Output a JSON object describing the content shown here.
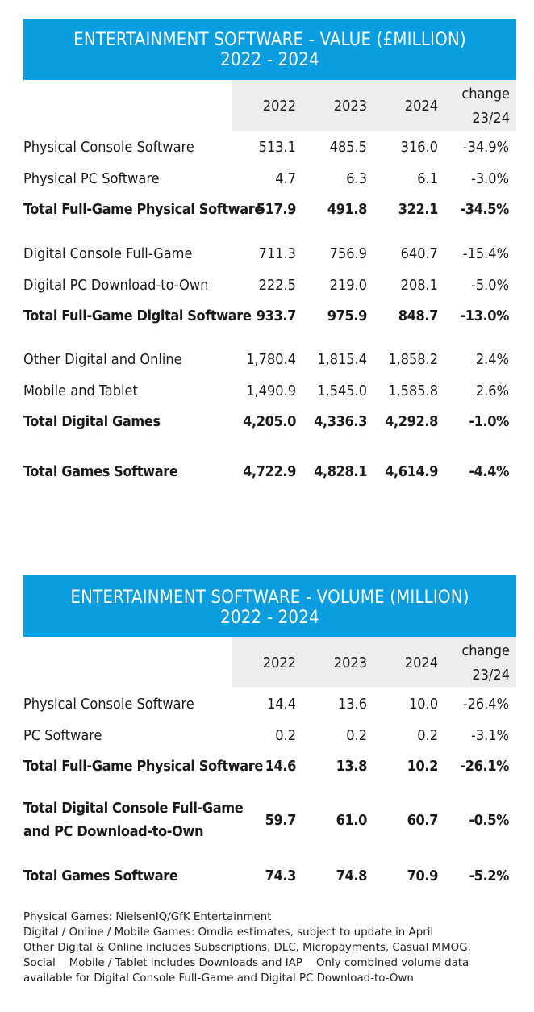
{
  "value_table": {
    "title": "ENTERTAINMENT SOFTWARE - VALUE (£MILLION)",
    "subtitle": "2022 - 2024",
    "headers": [
      "2022",
      "2023",
      "2024",
      "change",
      "23/24"
    ],
    "rows": [
      {
        "label": "Physical Console Software",
        "v2022": "513.1",
        "v2023": "485.5",
        "v2024": "316.0",
        "change": "-34.9%"
      },
      {
        "label": "Physical PC Software",
        "v2022": "4.7",
        "v2023": "6.3",
        "v2024": "6.1",
        "change": "-3.0%"
      },
      {
        "label": "Total Full-Game Physical Software",
        "v2022": "517.9",
        "v2023": "491.8",
        "v2024": "322.1",
        "change": "-34.5%"
      },
      {
        "label": "Digital Console Full-Game",
        "v2022": "711.3",
        "v2023": "756.9",
        "v2024": "640.7",
        "change": "-15.4%"
      },
      {
        "label": "Digital PC Download-to-Own",
        "v2022": "222.5",
        "v2023": "219.0",
        "v2024": "208.1",
        "change": "-5.0%"
      },
      {
        "label": "Total Full-Game Digital Software",
        "v2022": "933.7",
        "v2023": "975.9",
        "v2024": "848.7",
        "change": "-13.0%"
      },
      {
        "label": "Other Digital and Online",
        "v2022": "1,780.4",
        "v2023": "1,815.4",
        "v2024": "1,858.2",
        "change": "2.4%"
      },
      {
        "label": "Mobile and Tablet",
        "v2022": "1,490.9",
        "v2023": "1,545.0",
        "v2024": "1,585.8",
        "change": "2.6%"
      },
      {
        "label": "Total Digital Games",
        "v2022": "4,205.0",
        "v2023": "4,336.3",
        "v2024": "4,292.8",
        "change": "-1.0%"
      },
      {
        "label": "Total Games Software",
        "v2022": "4,722.9",
        "v2023": "4,828.1",
        "v2024": "4,614.9",
        "change": "-4.4%"
      }
    ]
  },
  "volume_table": {
    "title": "ENTERTAINMENT SOFTWARE - VOLUME (MILLION)",
    "subtitle": "2022 - 2024",
    "headers": [
      "2022",
      "2023",
      "2024",
      "change",
      "23/24"
    ],
    "rows": [
      {
        "label": "Physical Console Software",
        "v2022": "14.4",
        "v2023": "13.6",
        "v2024": "10.0",
        "change": "-26.4%"
      },
      {
        "label": "PC Software",
        "v2022": "0.2",
        "v2023": "0.2",
        "v2024": "0.2",
        "change": "-3.1%"
      },
      {
        "label": "Total Full-Game Physical Software",
        "v2022": "14.6",
        "v2023": "13.8",
        "v2024": "10.2",
        "change": "-26.1%"
      },
      {
        "label_line1": "Total Digital Console Full-Game",
        "label_line2": "and PC Download-to-Own",
        "v2022": "59.7",
        "v2023": "61.0",
        "v2024": "60.7",
        "change": "-0.5%"
      },
      {
        "label": "Total Games Software",
        "v2022": "74.3",
        "v2023": "74.8",
        "v2024": "70.9",
        "change": "-5.2%"
      }
    ]
  },
  "notes": [
    "Physical Games: NielsenIQ/GfK Entertainment",
    "Digital / Online / Mobile Games: Omdia estimates, subject to update in April",
    "Other Digital & Online includes Subscriptions, DLC, Micropayments, Casual MMOG,",
    "Social    Mobile / Tablet includes Downloads and IAP    Only combined volume data",
    "available for Digital Console Full-Game and Digital PC Download-to-Own"
  ]
}
